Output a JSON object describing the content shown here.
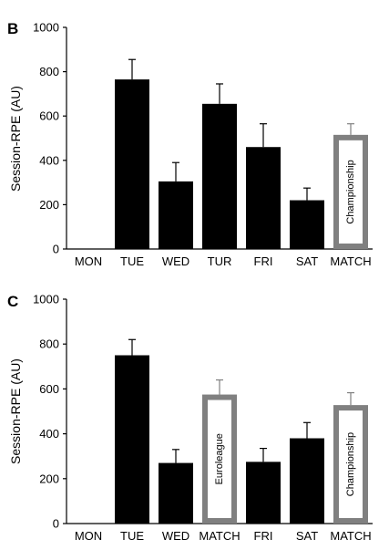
{
  "chart_data": [
    {
      "panel": "B",
      "type": "bar",
      "ylabel": "Session-RPE (AU)",
      "ylim": [
        0,
        1000
      ],
      "yticks": [
        0,
        200,
        400,
        600,
        800,
        1000
      ],
      "grid": false,
      "colors": {
        "bar": "#000000",
        "match_outline": "#808080",
        "match_fill": "#ffffff"
      },
      "categories": [
        "MON",
        "TUE",
        "WED",
        "TUR",
        "FRI",
        "SAT",
        "MATCH"
      ],
      "values": [
        0,
        765,
        305,
        655,
        460,
        220,
        515
      ],
      "errors": [
        0,
        90,
        85,
        90,
        105,
        55,
        50
      ],
      "styles": [
        "solid",
        "solid",
        "solid",
        "solid",
        "solid",
        "solid",
        "match"
      ],
      "bar_labels": [
        "",
        "",
        "",
        "",
        "",
        "",
        "Championship"
      ]
    },
    {
      "panel": "C",
      "type": "bar",
      "ylabel": "Session-RPE (AU)",
      "ylim": [
        0,
        1000
      ],
      "yticks": [
        0,
        200,
        400,
        600,
        800,
        1000
      ],
      "grid": false,
      "colors": {
        "bar": "#000000",
        "match_outline": "#808080",
        "match_fill": "#ffffff"
      },
      "categories": [
        "MON",
        "TUE",
        "WED",
        "MATCH",
        "FRI",
        "SAT",
        "MATCH"
      ],
      "values": [
        0,
        750,
        270,
        575,
        275,
        380,
        528
      ],
      "errors": [
        0,
        70,
        60,
        65,
        60,
        70,
        55
      ],
      "styles": [
        "solid",
        "solid",
        "solid",
        "match",
        "solid",
        "solid",
        "match"
      ],
      "bar_labels": [
        "",
        "",
        "",
        "Euroleague",
        "",
        "",
        "Championship"
      ]
    }
  ]
}
